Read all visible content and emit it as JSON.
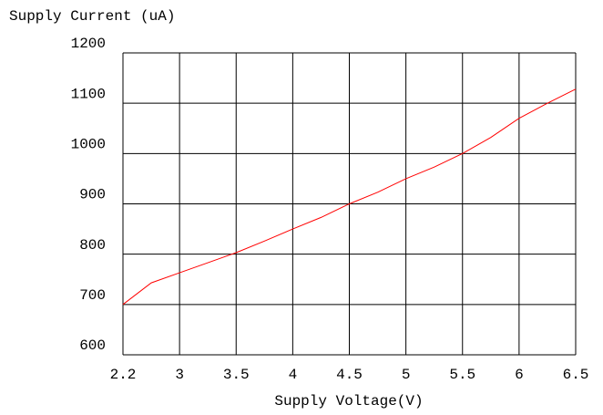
{
  "chart_data": {
    "type": "line",
    "title": "Supply Current (uA)",
    "x_label": "Supply Voltage(V)",
    "categories": [
      "2.2",
      null,
      "3",
      null,
      "3.5",
      null,
      "4",
      null,
      "4.5",
      null,
      "5",
      null,
      "5.5",
      null,
      "6",
      null,
      "6.5"
    ],
    "series": [
      {
        "name": "Supply Current",
        "color": "#ff0000",
        "values": [
          700,
          743,
          763,
          783,
          803,
          826,
          850,
          873,
          900,
          923,
          950,
          973,
          1000,
          1032,
          1070,
          1100,
          1128
        ]
      }
    ],
    "ylim": [
      600,
      1200
    ],
    "yticks": [
      600,
      700,
      800,
      900,
      1000,
      1100,
      1200
    ],
    "grid": true
  }
}
